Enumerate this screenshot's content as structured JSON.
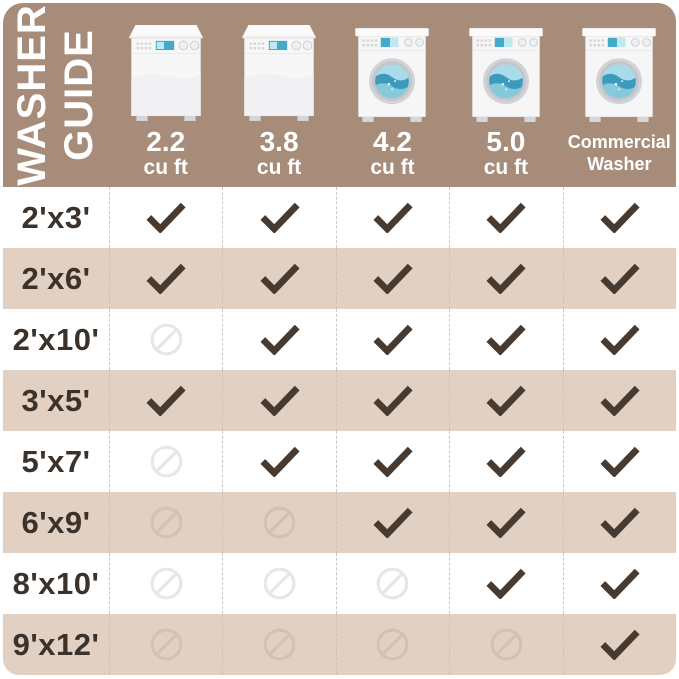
{
  "title": {
    "line1": "WASHER",
    "line2": "GUIDE"
  },
  "columns": [
    {
      "id": "2-2-cu-ft",
      "washer": "top",
      "label_main": "2.2",
      "label_sub": "cu ft",
      "label_style": "big"
    },
    {
      "id": "3-8-cu-ft",
      "washer": "top",
      "label_main": "3.8",
      "label_sub": "cu ft",
      "label_style": "big"
    },
    {
      "id": "4-2-cu-ft",
      "washer": "front",
      "label_main": "4.2",
      "label_sub": "cu ft",
      "label_style": "big"
    },
    {
      "id": "5-0-cu-ft",
      "washer": "front",
      "label_main": "5.0",
      "label_sub": "cu ft",
      "label_style": "big"
    },
    {
      "id": "commercial",
      "washer": "front",
      "label_main": "Commercial",
      "label_sub": "Washer",
      "label_style": "small"
    }
  ],
  "icons": {
    "check": "check-icon",
    "no": "no-symbol-icon",
    "washer_top": "top-load-washer-icon",
    "washer_front": "front-load-washer-icon"
  },
  "colors": {
    "header_brown": "#a78c79",
    "row_tint": "#e2d0c2",
    "row_white": "#ffffff",
    "check_mark": "#463a31",
    "size_label_text": "#3a322b",
    "no_symbol_on_white": "#e9e6e3",
    "no_symbol_on_tint": "#d5c1b2",
    "washer_water_blue": "#3e9abc",
    "title_text": "#ffffff"
  },
  "chart_data": {
    "type": "table",
    "title": "Washer Guide",
    "columns": [
      "2.2 cu ft",
      "3.8 cu ft",
      "4.2 cu ft",
      "5.0 cu ft",
      "Commercial Washer"
    ],
    "row_labels": [
      "2'x3'",
      "2'x6'",
      "2'x10'",
      "3'x5'",
      "5'x7'",
      "6'x9'",
      "8'x10'",
      "9'x12'"
    ],
    "cell_symbols": [
      [
        "check",
        "check",
        "check",
        "check",
        "check"
      ],
      [
        "check",
        "check",
        "check",
        "check",
        "check"
      ],
      [
        "no",
        "check",
        "check",
        "check",
        "check"
      ],
      [
        "check",
        "check",
        "check",
        "check",
        "check"
      ],
      [
        "no",
        "check",
        "check",
        "check",
        "check"
      ],
      [
        "no",
        "no",
        "check",
        "check",
        "check"
      ],
      [
        "no",
        "no",
        "no",
        "check",
        "check"
      ],
      [
        "no",
        "no",
        "no",
        "no",
        "check"
      ]
    ],
    "legend_note": "check = shown suitable, no = circle-slash symbol shown",
    "row_striping": "alternating white / tan starting white"
  }
}
